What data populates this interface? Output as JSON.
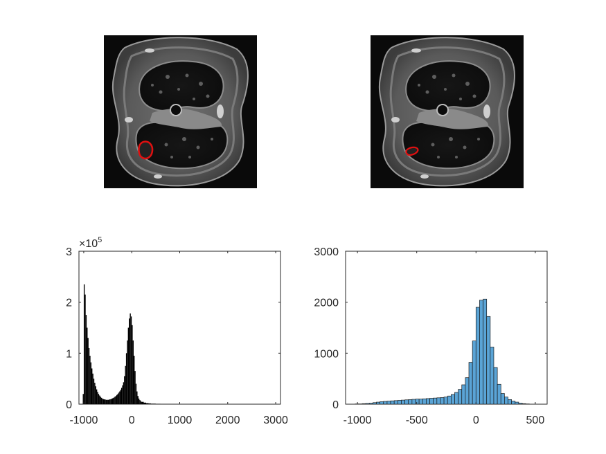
{
  "images": [
    {
      "name": "ct-slice-left",
      "background": "#0a0a0a",
      "contour_color": "#e01010"
    },
    {
      "name": "ct-slice-right",
      "background": "#0a0a0a",
      "contour_color": "#e01010"
    }
  ],
  "chart_data": [
    {
      "type": "histogram",
      "title": "",
      "xlabel": "",
      "ylabel": "",
      "xlim": [
        -1100,
        3100
      ],
      "ylim": [
        0,
        300000
      ],
      "xticks": [
        -1000,
        0,
        1000,
        2000,
        3000
      ],
      "xtick_labels": [
        "-1000",
        "0",
        "1000",
        "2000",
        "3000"
      ],
      "yticks": [
        0,
        100000,
        200000,
        300000
      ],
      "ytick_labels": [
        "0",
        "1",
        "2",
        "3"
      ],
      "y_exponent_base": "×10",
      "y_exponent_power": "5",
      "bar_color": "#000000",
      "bin_width": 20,
      "x": [
        -1020,
        -1000,
        -980,
        -960,
        -940,
        -920,
        -900,
        -880,
        -860,
        -840,
        -820,
        -800,
        -780,
        -760,
        -740,
        -720,
        -700,
        -680,
        -660,
        -640,
        -620,
        -600,
        -580,
        -560,
        -540,
        -520,
        -500,
        -480,
        -460,
        -440,
        -420,
        -400,
        -380,
        -360,
        -340,
        -320,
        -300,
        -280,
        -260,
        -240,
        -220,
        -200,
        -180,
        -160,
        -140,
        -120,
        -100,
        -80,
        -60,
        -40,
        -20,
        0,
        20,
        40,
        60,
        80,
        100,
        120,
        140,
        160,
        180,
        200,
        250,
        300,
        350,
        400,
        500,
        600,
        800,
        1000,
        1500,
        2000,
        2500,
        3000
      ],
      "values": [
        20000,
        235000,
        215000,
        175000,
        150000,
        130000,
        110000,
        95000,
        82000,
        70000,
        60000,
        50000,
        42000,
        35000,
        29000,
        24000,
        20000,
        17000,
        14500,
        12500,
        11000,
        10000,
        9500,
        9000,
        8500,
        8500,
        8500,
        9000,
        9500,
        10000,
        11000,
        12000,
        13000,
        14500,
        16000,
        18000,
        20000,
        22500,
        25000,
        28000,
        32000,
        37000,
        43000,
        55000,
        75000,
        100000,
        125000,
        150000,
        168000,
        178000,
        172000,
        155000,
        125000,
        95000,
        65000,
        40000,
        25000,
        16000,
        11000,
        8000,
        6000,
        4500,
        3000,
        2000,
        1500,
        1000,
        700,
        400,
        250,
        150,
        80,
        40,
        20,
        10
      ]
    },
    {
      "type": "histogram",
      "title": "",
      "xlabel": "",
      "ylabel": "",
      "xlim": [
        -1100,
        600
      ],
      "ylim": [
        0,
        3000
      ],
      "xticks": [
        -1000,
        -500,
        0,
        500
      ],
      "xtick_labels": [
        "-1000",
        "-500",
        "0",
        "500"
      ],
      "yticks": [
        0,
        1000,
        2000,
        3000
      ],
      "ytick_labels": [
        "0",
        "1000",
        "2000",
        "3000"
      ],
      "bar_color": "#5aa4d6",
      "edge_color": "#1a1a1a",
      "bin_width": 30,
      "bin_edges_start": -1020,
      "values": [
        5,
        5,
        10,
        15,
        20,
        30,
        40,
        50,
        55,
        60,
        65,
        70,
        75,
        80,
        85,
        90,
        95,
        100,
        100,
        105,
        110,
        115,
        120,
        125,
        130,
        140,
        160,
        190,
        230,
        290,
        380,
        520,
        820,
        1240,
        1900,
        2040,
        2060,
        1720,
        1120,
        720,
        390,
        210,
        140,
        90,
        60,
        40,
        20,
        10,
        5
      ]
    }
  ]
}
